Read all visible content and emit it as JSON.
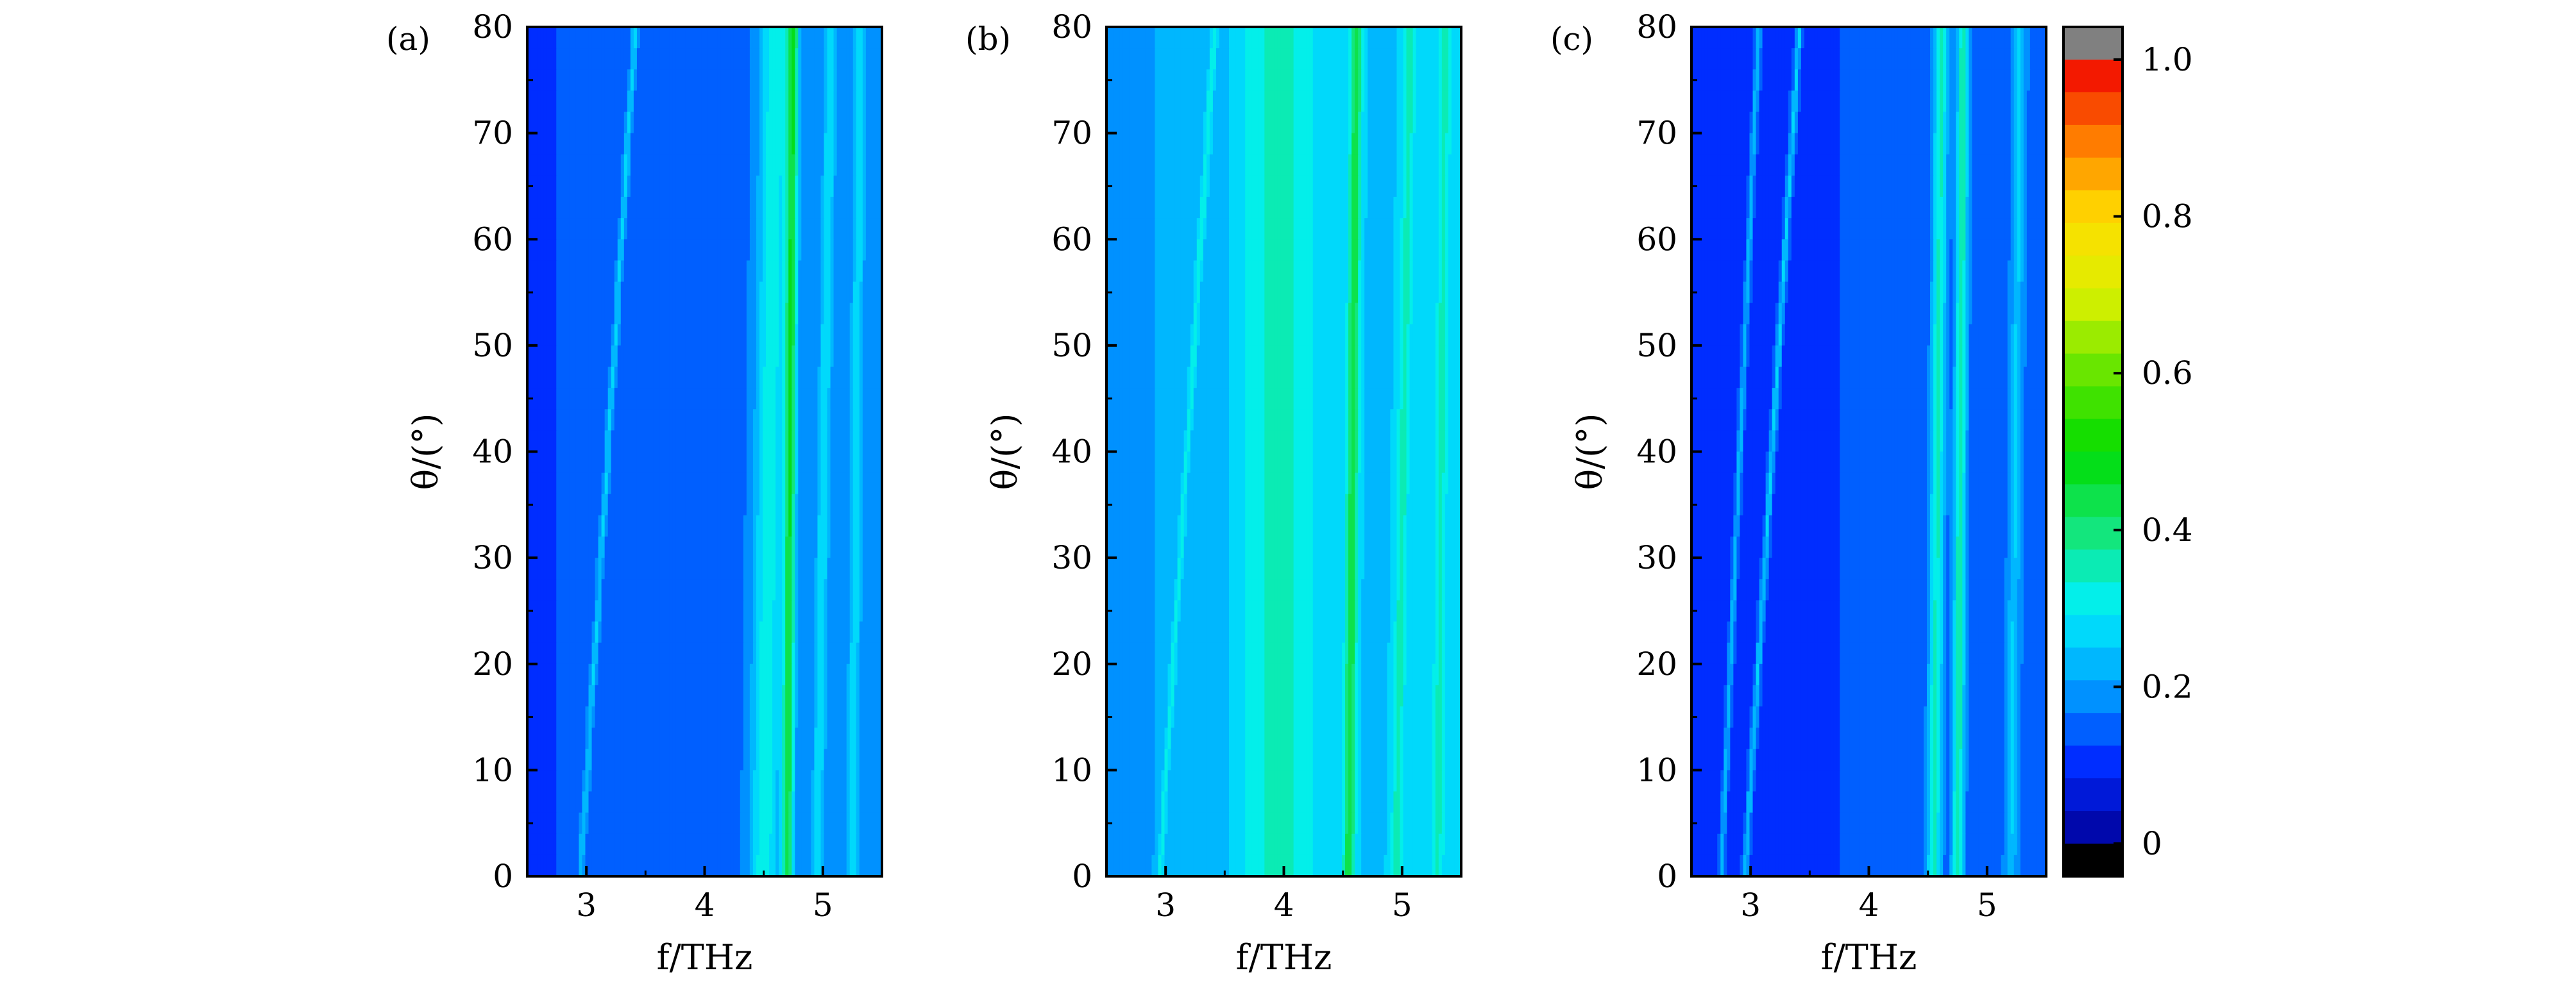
{
  "chart_data": {
    "type": "heatmap",
    "x_label": "f/THz",
    "y_label": "θ/(°)",
    "xlim": [
      2.5,
      5.5
    ],
    "ylim": [
      0,
      80
    ],
    "x_ticks": [
      3,
      4,
      5
    ],
    "y_ticks": [
      0,
      10,
      20,
      30,
      40,
      50,
      60,
      70,
      80
    ],
    "panels": [
      {
        "label": "(a)",
        "background": 0.12,
        "bands": [
          {
            "f0": 2.95,
            "slope": 0.0058,
            "amp": 0.12,
            "width": 0.03
          },
          {
            "f0": 4.5,
            "slope": 0.0012,
            "amp": 0.16,
            "width": 0.12
          },
          {
            "f0": 4.7,
            "slope": 0.0006,
            "amp": 0.28,
            "width": 0.05
          },
          {
            "f0": 4.95,
            "slope": 0.0015,
            "amp": 0.12,
            "width": 0.05
          },
          {
            "f0": 5.25,
            "slope": 0.0008,
            "amp": 0.1,
            "width": 0.05
          }
        ]
      },
      {
        "label": "(b)",
        "background": 0.2,
        "bands": [
          {
            "f0": 2.95,
            "slope": 0.0058,
            "amp": 0.1,
            "width": 0.03
          },
          {
            "f0": 3.95,
            "slope": 0.0,
            "amp": 0.12,
            "width": 0.35
          },
          {
            "f0": 4.55,
            "slope": 0.0008,
            "amp": 0.2,
            "width": 0.05
          },
          {
            "f0": 4.95,
            "slope": 0.0015,
            "amp": 0.1,
            "width": 0.05
          },
          {
            "f0": 5.3,
            "slope": 0.0008,
            "amp": 0.09,
            "width": 0.05
          }
        ]
      },
      {
        "label": "(c)",
        "background": 0.1,
        "bands": [
          {
            "f0": 2.75,
            "slope": 0.004,
            "amp": 0.12,
            "width": 0.025
          },
          {
            "f0": 2.95,
            "slope": 0.0058,
            "amp": 0.14,
            "width": 0.025
          },
          {
            "f0": 4.55,
            "slope": 0.0008,
            "amp": 0.2,
            "width": 0.06
          },
          {
            "f0": 4.75,
            "slope": 0.0006,
            "amp": 0.22,
            "width": 0.05
          },
          {
            "f0": 5.2,
            "slope": 0.001,
            "amp": 0.1,
            "width": 0.05
          }
        ]
      }
    ],
    "colorbar": {
      "min": 0,
      "max": 1.0,
      "ticks": [
        0,
        0.2,
        0.4,
        0.6,
        0.8,
        1.0
      ],
      "tick_labels": [
        "0",
        "0.2",
        "0.4",
        "0.6",
        "0.8",
        "1.0"
      ],
      "levels": 24,
      "underflow_color": "#000000",
      "overflow_color": "#808080"
    }
  },
  "colors": {
    "low": "#0000ff",
    "mid_low": "#00ffff",
    "mid": "#00ff00",
    "mid_high": "#ffff00",
    "high": "#ff0000"
  }
}
